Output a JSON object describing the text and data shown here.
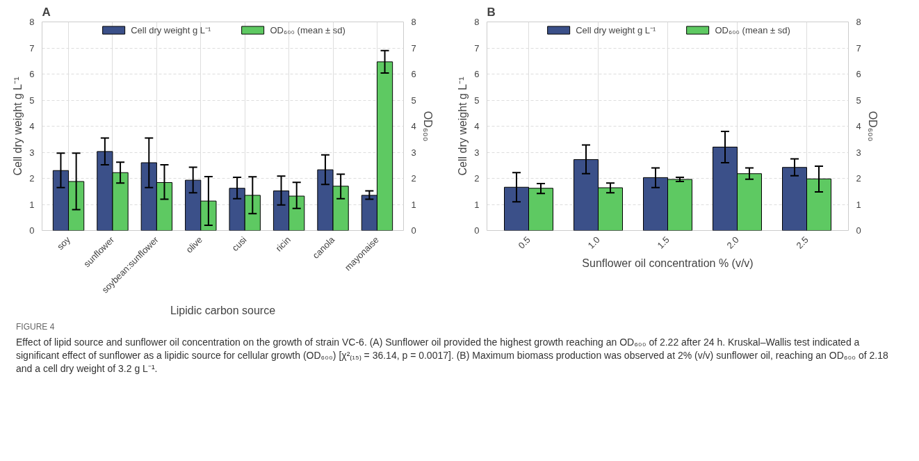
{
  "chart_data": [
    {
      "type": "bar",
      "title": "A",
      "xlabel": "Lipidic carbon source",
      "ylabel": "Cell dry weight g L⁻¹",
      "y2label": "OD₆₀₀",
      "categories": [
        "soy",
        "sunflower",
        "soybean:sunflower",
        "olive",
        "cusi",
        "ricin",
        "canola",
        "mayonaise"
      ],
      "series": [
        {
          "name": "Cell dry weight g L⁻¹",
          "color": "#3b5089",
          "values": [
            2.3,
            3.03,
            2.6,
            1.93,
            1.62,
            1.52,
            2.33,
            1.35
          ],
          "errors": [
            [
              1.65,
              2.97
            ],
            [
              2.52,
              3.55
            ],
            [
              1.65,
              3.55
            ],
            [
              1.45,
              2.43
            ],
            [
              1.22,
              2.04
            ],
            [
              0.98,
              2.09
            ],
            [
              1.77,
              2.9
            ],
            [
              1.2,
              1.52
            ]
          ]
        },
        {
          "name": "OD₆₀₀ (mean ± sd)",
          "color": "#5ec962",
          "axis": "y2",
          "values": [
            1.88,
            2.22,
            1.84,
            1.13,
            1.35,
            1.32,
            1.7,
            6.47
          ],
          "errors": [
            [
              0.8,
              2.97
            ],
            [
              1.82,
              2.62
            ],
            [
              1.2,
              2.52
            ],
            [
              0.2,
              2.07
            ],
            [
              0.65,
              2.06
            ],
            [
              0.85,
              1.85
            ],
            [
              1.22,
              2.16
            ],
            [
              6.04,
              6.9
            ]
          ]
        }
      ],
      "ylim": [
        0,
        8
      ],
      "yticks": [
        0,
        1,
        2,
        3,
        4,
        5,
        6,
        7,
        8
      ],
      "y2lim": [
        0,
        8
      ],
      "y2ticks": [
        0,
        1,
        2,
        3,
        4,
        5,
        6,
        7,
        8
      ],
      "grid": true,
      "legend": "top",
      "annotations": [
        "FIGURE 4",
        "Effect of lipid source and sunflower oil concentration on the growth of strain VC-6. (A) Sunflower oil provided the highest growth reaching an OD₆₀₀ of 2.22 after 24 h. Kruskal–Wallis test indicated a significant effect of sunflower as a lipidic source for cellular growth (OD₆₀₀) [χ²₍₁₅₎ = 36.14, p = 0.0017]. (B) Maximum biomass production was observed at 2% (v/v) sunflower oil, reaching an OD₆₀₀ of 2.18 and a cell dry weight of 3.2 g L⁻¹."
      ]
    },
    {
      "type": "bar",
      "title": "B",
      "xlabel": "Sunflower oil concentration % (v/v)",
      "ylabel": "Cell dry weight g L⁻¹",
      "y2label": "OD₆₀₀",
      "categories": [
        "0.5",
        "1.0",
        "1.5",
        "2.0",
        "2.5"
      ],
      "series": [
        {
          "name": "Cell dry weight g L⁻¹",
          "color": "#3b5089",
          "values": [
            1.66,
            2.72,
            2.03,
            3.2,
            2.42
          ],
          "errors": [
            [
              1.1,
              2.22
            ],
            [
              2.18,
              3.28
            ],
            [
              1.65,
              2.4
            ],
            [
              2.6,
              3.8
            ],
            [
              2.1,
              2.75
            ]
          ]
        },
        {
          "name": "OD₆₀₀ (mean ± sd)",
          "color": "#5ec962",
          "axis": "y2",
          "values": [
            1.62,
            1.64,
            1.96,
            2.18,
            1.98
          ],
          "errors": [
            [
              1.42,
              1.8
            ],
            [
              1.45,
              1.82
            ],
            [
              1.88,
              2.04
            ],
            [
              1.97,
              2.4
            ],
            [
              1.48,
              2.47
            ]
          ]
        }
      ],
      "ylim": [
        0,
        8
      ],
      "yticks": [
        0,
        1,
        2,
        3,
        4,
        5,
        6,
        7,
        8
      ],
      "y2lim": [
        0,
        8
      ],
      "y2ticks": [
        0,
        1,
        2,
        3,
        4,
        5,
        6,
        7,
        8
      ],
      "grid": true,
      "legend": "top"
    }
  ]
}
